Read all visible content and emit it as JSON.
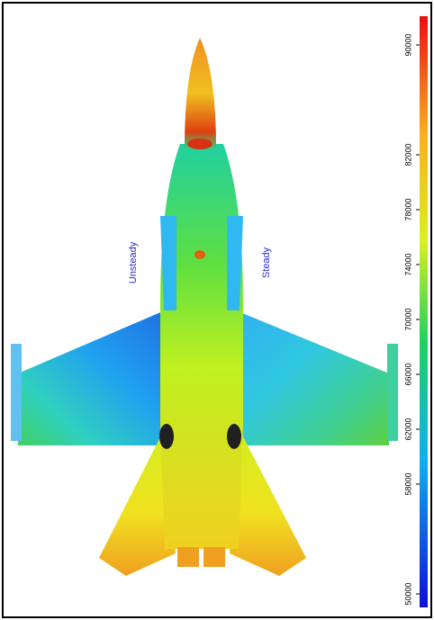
{
  "annotations": {
    "left": "Unsteady",
    "right": "Steady"
  },
  "colorbar": {
    "ticks": [
      50000,
      58000,
      62000,
      66000,
      70000,
      74000,
      78000,
      82000,
      90000
    ]
  }
}
